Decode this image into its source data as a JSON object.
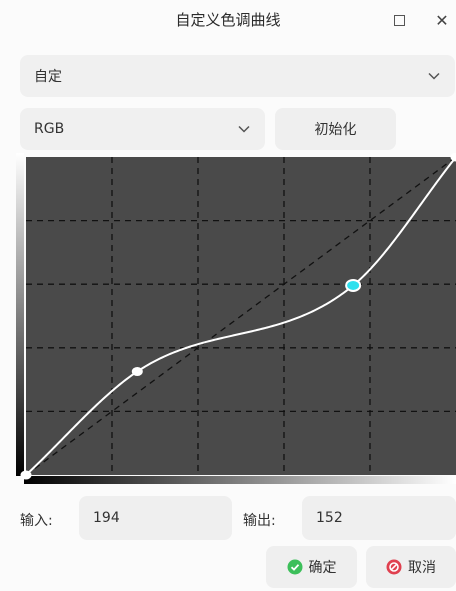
{
  "window": {
    "title": "自定义色调曲线"
  },
  "toolbar": {
    "mode_value": "自定",
    "channel_value": "RGB",
    "init_label": "初始化"
  },
  "curve": {
    "control_points": [
      {
        "input": 0,
        "output": 0
      },
      {
        "input": 66,
        "output": 83
      },
      {
        "input": 194,
        "output": 152
      },
      {
        "input": 255,
        "output": 255
      }
    ],
    "selected_point_index": 2,
    "range": [
      0,
      255
    ],
    "grid_divisions": 5,
    "colors": {
      "background": "#4a4a4a",
      "curve": "#ffffff",
      "selected_point": "#2ee0ee"
    }
  },
  "io": {
    "input_label": "输入:",
    "input_value": "194",
    "output_label": "输出:",
    "output_value": "152"
  },
  "footer": {
    "ok_label": "确定",
    "cancel_label": "取消",
    "ok_color": "#3cbf5a",
    "cancel_color": "#e0404f"
  }
}
